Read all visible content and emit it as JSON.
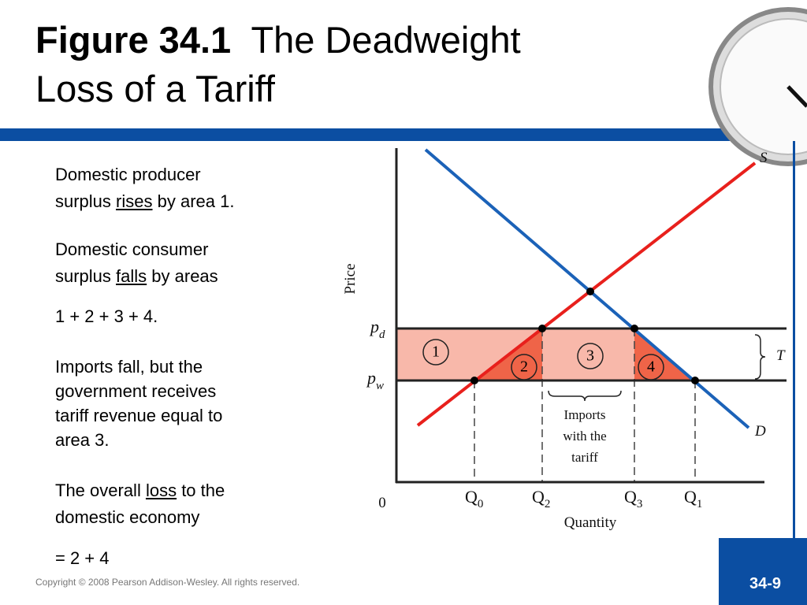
{
  "header": {
    "title_bold": "Figure 34.1",
    "title_lines": [
      "The Deadweight",
      "Loss of a Tariff"
    ]
  },
  "body": {
    "paragraphs": [
      {
        "top": 0,
        "lines": [
          [
            {
              "text": "Domestic producer"
            }
          ],
          [
            {
              "text": "surplus "
            },
            {
              "text": "rises",
              "underline": true
            },
            {
              "text": " by area 1."
            }
          ]
        ]
      },
      {
        "top": 0,
        "lines": [
          [
            {
              "text": "Domestic consumer"
            }
          ],
          [
            {
              "text": "surplus "
            },
            {
              "text": "falls",
              "underline": true
            },
            {
              "text": " by areas"
            }
          ]
        ]
      },
      {
        "top": 0,
        "lines": [
          [
            {
              "text": "1 + 2 + 3 + 4."
            }
          ]
        ]
      },
      {
        "top": 0,
        "lines": [
          [
            {
              "text": "Imports fall, but the"
            }
          ],
          [
            {
              "text": "government receives"
            }
          ],
          [
            {
              "text": "tariff revenue equal to"
            }
          ],
          [
            {
              "text": "area 3."
            }
          ]
        ]
      },
      {
        "top": 0,
        "lines": [
          [
            {
              "text": "The overall "
            },
            {
              "text": "loss",
              "underline": true
            },
            {
              "text": " to the"
            }
          ],
          [
            {
              "text": "domestic economy"
            }
          ]
        ]
      },
      {
        "top": 0,
        "lines": [
          [
            {
              "text": "= 2 + 4"
            }
          ]
        ]
      }
    ]
  },
  "diagram": {
    "y_axis": "Price",
    "x_axis": "Quantity",
    "origin": "0",
    "supply": "S",
    "demand": "D",
    "price_domestic": {
      "base": "p",
      "sub": "d"
    },
    "price_world": {
      "base": "p",
      "sub": "w"
    },
    "tariff": "T",
    "quantities": [
      {
        "base": "Q",
        "sub": "0"
      },
      {
        "base": "Q",
        "sub": "2"
      },
      {
        "base": "Q",
        "sub": "3"
      },
      {
        "base": "Q",
        "sub": "1"
      }
    ],
    "areas": [
      "1",
      "2",
      "3",
      "4"
    ],
    "imports_label": [
      "Imports",
      "with the",
      "tariff"
    ]
  },
  "footer": {
    "copyright": "Copyright © 2008 Pearson Addison-Wesley. All rights reserved.",
    "page": "34-9"
  }
}
